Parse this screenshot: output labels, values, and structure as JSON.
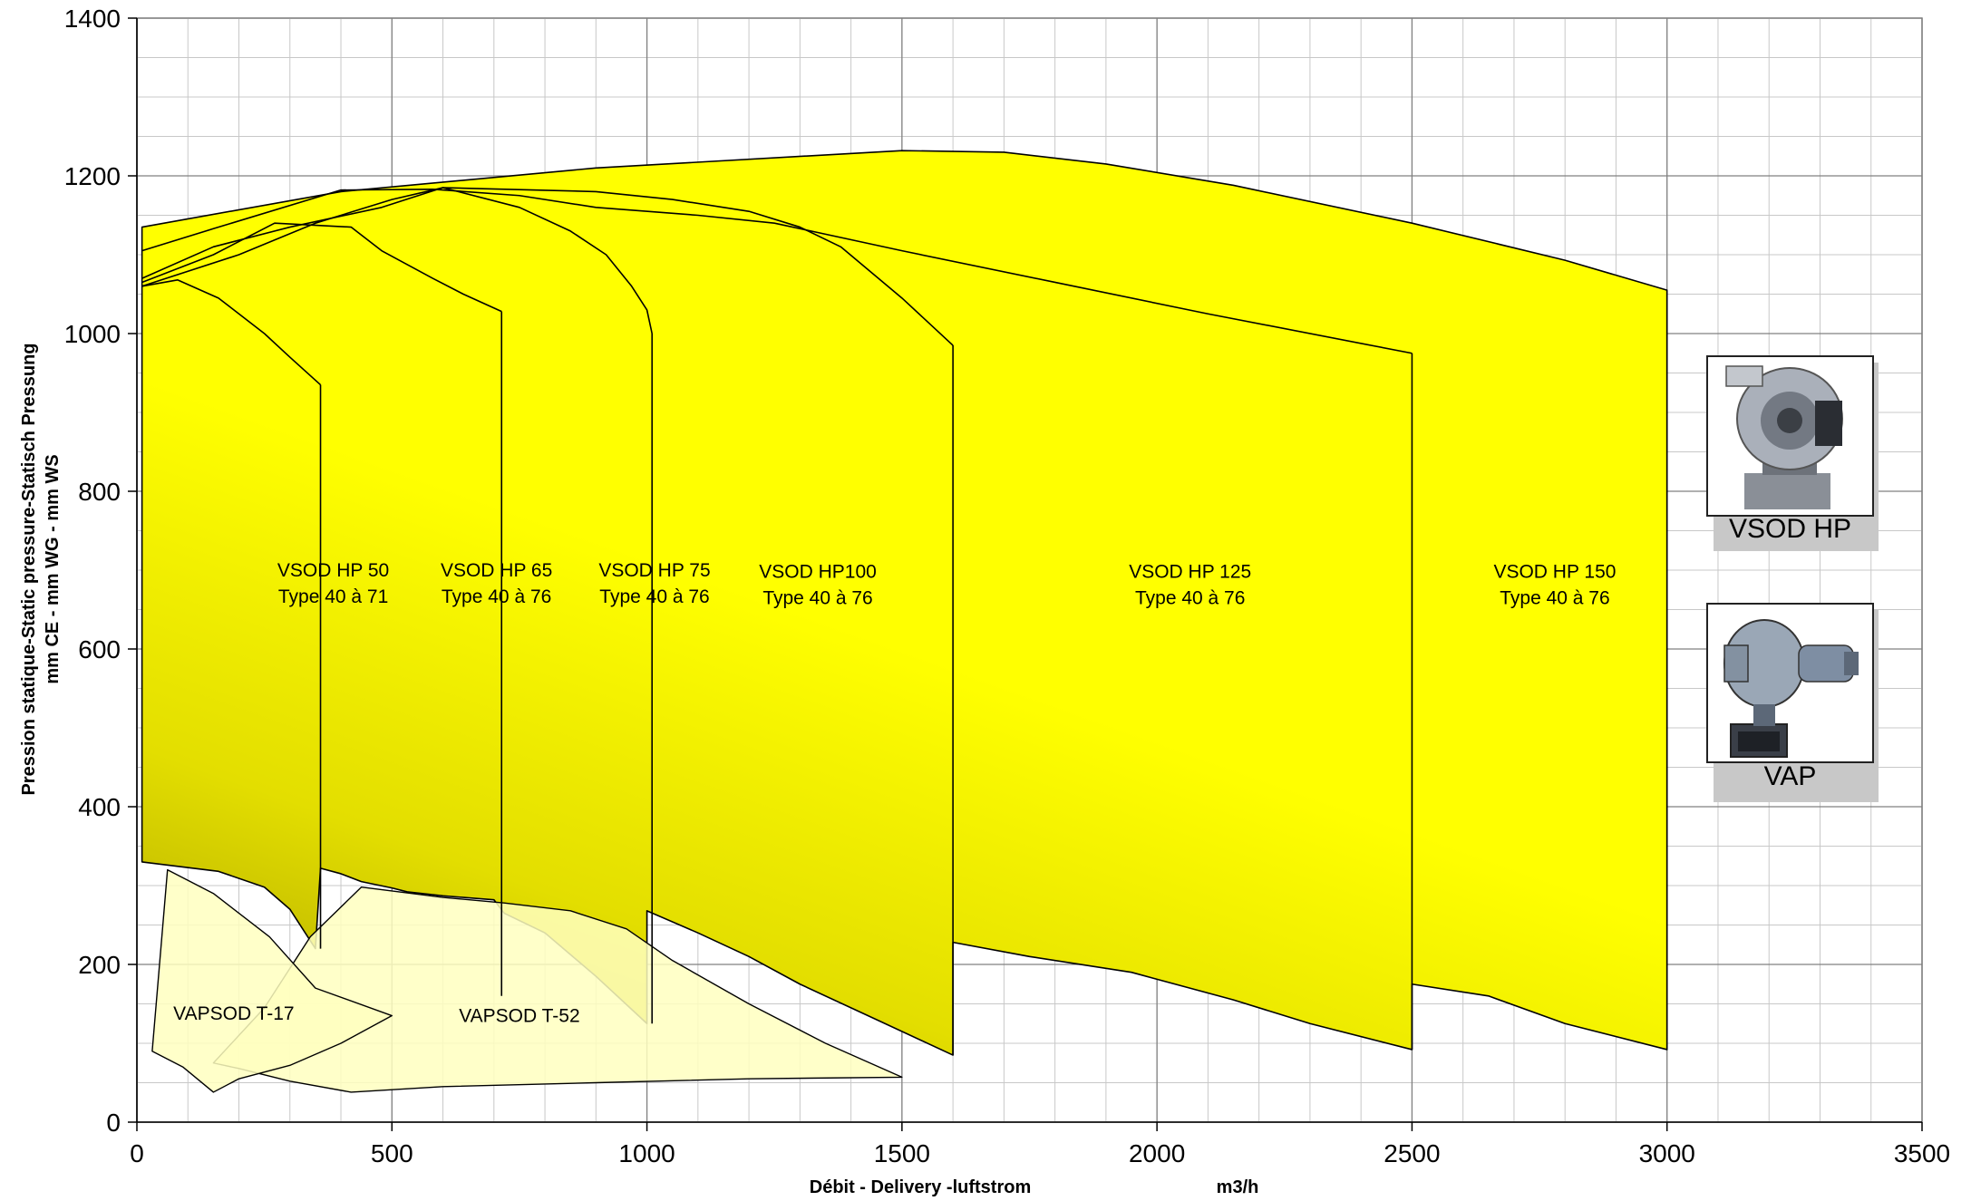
{
  "chart_data": {
    "type": "area",
    "xlabel": "Débit - Delivery -luftstrom",
    "xunit": "m3/h",
    "ylabel_line1": "Pression statique-Static pressure-Statisch Pressung",
    "ylabel_line2": "mm CE - mm WG - mm WS",
    "xlim": [
      0,
      3500
    ],
    "ylim": [
      0,
      1400
    ],
    "x_ticks": [
      0,
      500,
      1000,
      1500,
      2000,
      2500,
      3000,
      3500
    ],
    "y_ticks": [
      0,
      200,
      400,
      600,
      800,
      1000,
      1200,
      1400
    ],
    "grid": true,
    "regions": [
      {
        "name": "VSOD HP 150",
        "type_text": "Type 40 à 76",
        "fill": "#ffff00",
        "label_at": [
          2780,
          690
        ],
        "polygon": [
          [
            10,
            1135
          ],
          [
            400,
            1180
          ],
          [
            900,
            1210
          ],
          [
            1500,
            1232
          ],
          [
            1700,
            1230
          ],
          [
            1900,
            1215
          ],
          [
            2150,
            1188
          ],
          [
            2500,
            1140
          ],
          [
            2800,
            1093
          ],
          [
            3000,
            1055
          ],
          [
            3000,
            92
          ],
          [
            2800,
            125
          ],
          [
            2650,
            160
          ],
          [
            2500,
            175
          ],
          [
            2500,
            92
          ],
          [
            2300,
            125
          ],
          [
            2150,
            155
          ],
          [
            1950,
            190
          ],
          [
            1750,
            210
          ],
          [
            1600,
            228
          ],
          [
            1600,
            85
          ],
          [
            1450,
            130
          ],
          [
            1300,
            175
          ],
          [
            1200,
            210
          ],
          [
            1100,
            240
          ],
          [
            1000,
            268
          ],
          [
            1000,
            125
          ],
          [
            900,
            185
          ],
          [
            800,
            240
          ],
          [
            720,
            265
          ],
          [
            700,
            282
          ],
          [
            600,
            287
          ],
          [
            530,
            292
          ],
          [
            500,
            297
          ],
          [
            440,
            305
          ],
          [
            400,
            315
          ],
          [
            360,
            322
          ],
          [
            350,
            220
          ],
          [
            300,
            270
          ],
          [
            250,
            298
          ],
          [
            160,
            318
          ],
          [
            10,
            330
          ]
        ]
      },
      {
        "name": "VSOD HP 125",
        "type_text": "Type 40 à 76",
        "fill": "#ffff00",
        "label_at": [
          2065,
          690
        ],
        "polygon": [
          [
            10,
            1105
          ],
          [
            150,
            1133
          ],
          [
            400,
            1182
          ],
          [
            580,
            1183
          ],
          [
            750,
            1175
          ],
          [
            900,
            1160
          ],
          [
            1100,
            1150
          ],
          [
            1250,
            1140
          ],
          [
            1500,
            1105
          ],
          [
            1800,
            1065
          ],
          [
            2100,
            1025
          ],
          [
            2500,
            975
          ]
        ]
      },
      {
        "name": "VSOD HP100",
        "type_text": "Type 40 à 76",
        "fill": "#ffff00",
        "label_at": [
          1335,
          690
        ],
        "polygon": [
          [
            10,
            1070
          ],
          [
            150,
            1110
          ],
          [
            300,
            1135
          ],
          [
            480,
            1160
          ],
          [
            600,
            1185
          ],
          [
            900,
            1180
          ],
          [
            1050,
            1170
          ],
          [
            1200,
            1155
          ],
          [
            1300,
            1135
          ],
          [
            1380,
            1110
          ],
          [
            1500,
            1045
          ],
          [
            1600,
            985
          ]
        ]
      },
      {
        "name": "VSOD HP 75",
        "type_text": "Type 40 à 76",
        "fill": "#ffff00",
        "label_at": [
          1015,
          692
        ],
        "polygon": [
          [
            10,
            1060
          ],
          [
            200,
            1100
          ],
          [
            350,
            1140
          ],
          [
            500,
            1170
          ],
          [
            600,
            1185
          ],
          [
            750,
            1160
          ],
          [
            850,
            1130
          ],
          [
            920,
            1100
          ],
          [
            970,
            1060
          ],
          [
            1000,
            1030
          ],
          [
            1010,
            1000
          ]
        ]
      },
      {
        "name": "VSOD HP 65",
        "type_text": "Type 40 à 76",
        "fill": "#ffff00",
        "label_at": [
          705,
          692
        ],
        "polygon": [
          [
            10,
            1065
          ],
          [
            150,
            1100
          ],
          [
            270,
            1140
          ],
          [
            420,
            1135
          ],
          [
            480,
            1105
          ],
          [
            580,
            1070
          ],
          [
            640,
            1050
          ],
          [
            715,
            1028
          ]
        ]
      },
      {
        "name": "VSOD HP 50",
        "type_text": "Type 40 à 71",
        "fill": "#ffff00",
        "label_at": [
          385,
          692
        ],
        "polygon": [
          [
            10,
            1060
          ],
          [
            80,
            1068
          ],
          [
            160,
            1045
          ],
          [
            250,
            1000
          ],
          [
            300,
            970
          ],
          [
            360,
            935
          ]
        ]
      },
      {
        "name": "VAPSOD T-52",
        "type_text": "",
        "fill": "#ffffc0",
        "label_at": [
          750,
          127
        ],
        "polygon": [
          [
            150,
            75
          ],
          [
            250,
            145
          ],
          [
            340,
            235
          ],
          [
            440,
            298
          ],
          [
            600,
            285
          ],
          [
            720,
            278
          ],
          [
            850,
            268
          ],
          [
            960,
            245
          ],
          [
            1050,
            205
          ],
          [
            1200,
            150
          ],
          [
            1350,
            100
          ],
          [
            1500,
            57
          ],
          [
            1200,
            55
          ],
          [
            900,
            50
          ],
          [
            600,
            45
          ],
          [
            420,
            38
          ],
          [
            300,
            52
          ],
          [
            200,
            68
          ]
        ]
      },
      {
        "name": "VAPSOD T-17",
        "type_text": "",
        "fill": "#ffffc0",
        "label_at": [
          190,
          130
        ],
        "polygon": [
          [
            30,
            90
          ],
          [
            60,
            320
          ],
          [
            150,
            290
          ],
          [
            260,
            235
          ],
          [
            350,
            170
          ],
          [
            500,
            135
          ],
          [
            400,
            100
          ],
          [
            300,
            72
          ],
          [
            200,
            55
          ],
          [
            150,
            38
          ],
          [
            90,
            70
          ]
        ]
      }
    ],
    "products": [
      {
        "caption": "VSOD HP",
        "image_icon": "centrifugal-fan-photo"
      },
      {
        "caption": "VAP",
        "image_icon": "fan-motor-photo"
      }
    ]
  }
}
